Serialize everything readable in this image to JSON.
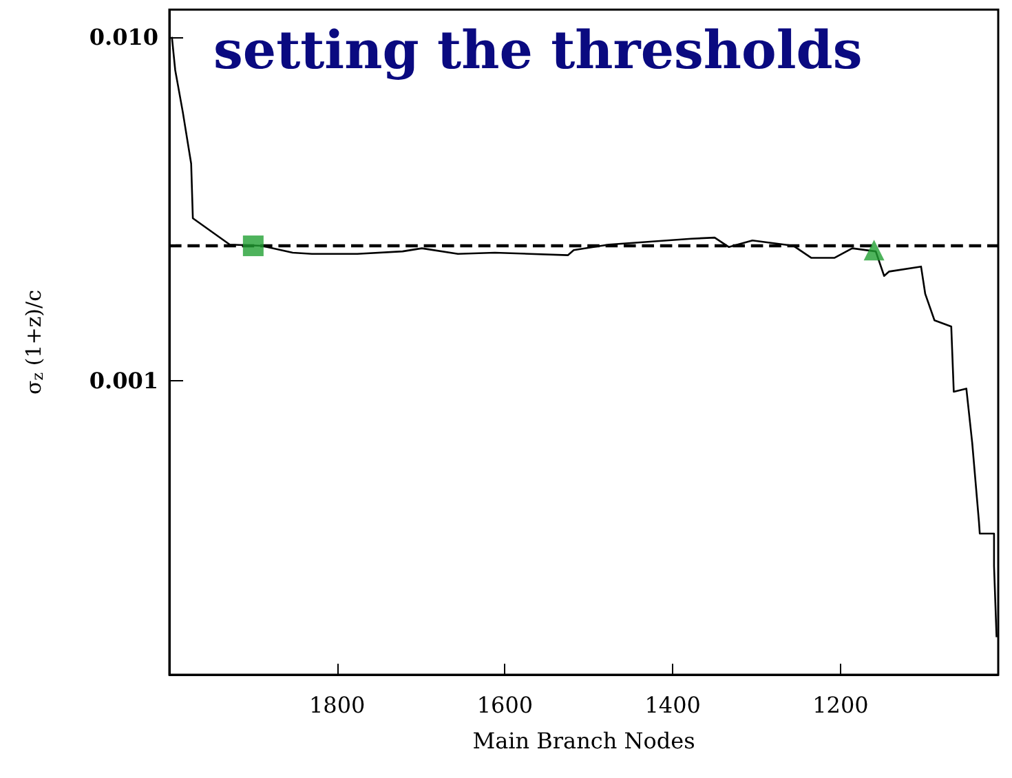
{
  "chart_data": {
    "type": "line",
    "title": "setting the thresholds",
    "xlabel": "Main Branch Nodes",
    "ylabel": "σ$_{z}$ (1+z)/c",
    "log": "y",
    "xlim": [
      2000,
      1012
    ],
    "xticks": [
      1800,
      1600,
      1400,
      1200
    ],
    "ylim": [
      0.00014,
      0.012
    ],
    "yticks": [
      {
        "value": 0.01,
        "label": "0.010"
      },
      {
        "value": 0.001,
        "label": "0.001"
      }
    ],
    "grid": false,
    "line_style": "solid",
    "marker": "none",
    "ref_lines": [
      {
        "axis": "y",
        "value": 0.00247,
        "line_style": "dashed",
        "color": "#000000"
      }
    ],
    "series": [
      {
        "color": "#000000",
        "x": [
          1997,
          1993,
          1984,
          1974,
          1972,
          1928,
          1890,
          1853,
          1830,
          1776,
          1722,
          1699,
          1656,
          1612,
          1525,
          1518,
          1476,
          1378,
          1350,
          1333,
          1305,
          1256,
          1235,
          1207,
          1186,
          1158,
          1148,
          1142,
          1104,
          1099,
          1088,
          1068,
          1065,
          1050,
          1043,
          1035,
          1034,
          1017,
          1017,
          1014
        ],
        "values": [
          0.01,
          0.008,
          0.00605,
          0.00428,
          0.00297,
          0.00249,
          0.00247,
          0.00236,
          0.00234,
          0.00234,
          0.00238,
          0.00243,
          0.00234,
          0.00236,
          0.00232,
          0.0024,
          0.00249,
          0.00259,
          0.00261,
          0.00245,
          0.00256,
          0.00247,
          0.00228,
          0.00228,
          0.00243,
          0.00238,
          0.00202,
          0.00208,
          0.00215,
          0.00179,
          0.0015,
          0.00144,
          0.00093,
          0.00095,
          0.00066,
          0.00039,
          0.00036,
          0.00036,
          0.00029,
          0.00018
        ]
      },
      {
        "type": "scatter",
        "marker": "square",
        "color": "#22a033",
        "x": [
          1900
        ],
        "values": [
          0.00247
        ]
      },
      {
        "type": "scatter",
        "marker": "triangle",
        "color": "#22a033",
        "x": [
          1160
        ],
        "values": [
          0.0024
        ]
      }
    ]
  }
}
